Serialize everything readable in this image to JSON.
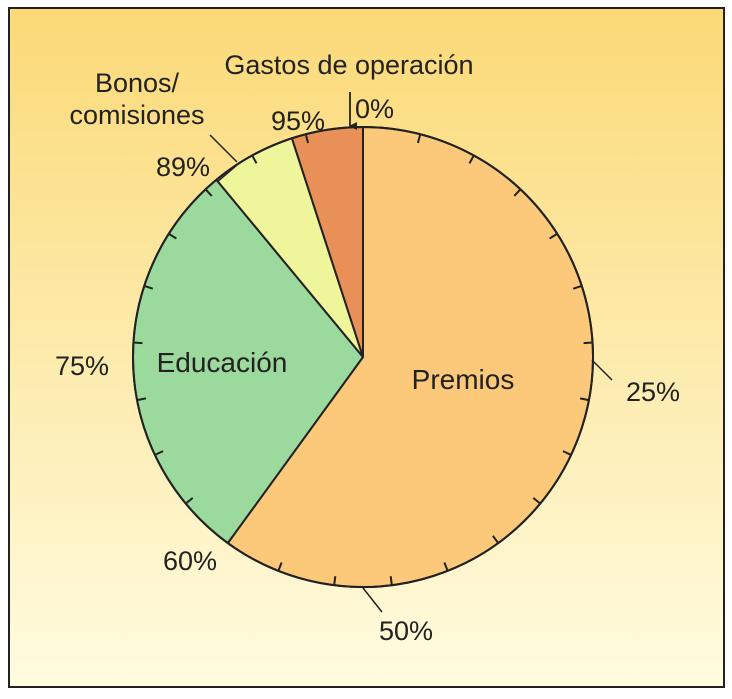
{
  "chart_data": {
    "type": "pie",
    "title": "",
    "colors": {
      "background_top": "#fbd977",
      "background_bottom": "#fffce0",
      "frame": "#222222"
    },
    "slices": [
      {
        "name": "Premios",
        "value": 60,
        "start_pct": 0,
        "end_pct": 60,
        "color": "#fcc87a"
      },
      {
        "name": "Educación",
        "value": 29,
        "start_pct": 60,
        "end_pct": 89,
        "color": "#9bd99d"
      },
      {
        "name": "Bonos/ comisiones",
        "value": 6,
        "start_pct": 89,
        "end_pct": 95,
        "color": "#eef59a"
      },
      {
        "name": "Gastos de operación",
        "value": 5,
        "start_pct": 95,
        "end_pct": 100,
        "color": "#e89058"
      }
    ],
    "slice_labels": {
      "premios": "Premios",
      "educacion": "Educación",
      "bonos_line1": "Bonos/",
      "bonos_line2": "comisiones",
      "gastos": "Gastos de operación"
    },
    "percent_ticks": {
      "p0": "0%",
      "p25": "25%",
      "p50": "50%",
      "p60": "60%",
      "p75": "75%",
      "p89": "89%",
      "p95": "95%"
    }
  }
}
